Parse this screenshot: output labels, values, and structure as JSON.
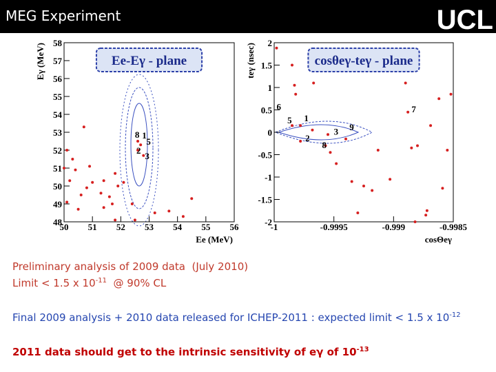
{
  "header": {
    "title": "MEG Experiment",
    "logo": "UCL"
  },
  "chart_data": [
    {
      "type": "scatter",
      "title": "Ee-Eγ - plane",
      "xlabel": "Ee (MeV)",
      "ylabel": "Eγ (MeV)",
      "color": "#d62020",
      "xlim": [
        50,
        56
      ],
      "xticks": [
        50,
        51,
        52,
        53,
        54,
        55,
        56
      ],
      "ylim": [
        48,
        58
      ],
      "yticks": [
        48,
        49,
        50,
        51,
        52,
        53,
        54,
        55,
        56,
        57,
        58
      ],
      "x": [
        50.1,
        50.3,
        50.0,
        50.4,
        50.2,
        50.6,
        50.1,
        50.5,
        50.9,
        51.0,
        50.8,
        51.3,
        51.4,
        51.6,
        51.7,
        51.8,
        51.9,
        51.4,
        52.1,
        52.4,
        52.5,
        53.2,
        53.7,
        54.2,
        54.5,
        51.8,
        50.7,
        52.6,
        52.7,
        52.6,
        52.8
      ],
      "y": [
        52.0,
        51.5,
        51.0,
        50.9,
        50.3,
        49.5,
        49.1,
        48.7,
        51.1,
        50.2,
        49.9,
        49.6,
        48.8,
        49.4,
        49.0,
        50.7,
        50.0,
        50.3,
        50.2,
        49.0,
        48.1,
        48.5,
        48.6,
        48.3,
        49.3,
        48.1,
        53.3,
        52.5,
        52.3,
        52.0,
        51.7
      ],
      "annotations": [
        {
          "text": "8",
          "x": 52.5,
          "y": 52.7
        },
        {
          "text": "1",
          "x": 52.75,
          "y": 52.65
        },
        {
          "text": "5",
          "x": 52.9,
          "y": 52.3
        },
        {
          "text": "2",
          "x": 52.55,
          "y": 51.8
        },
        {
          "text": "3",
          "x": 52.85,
          "y": 51.5
        }
      ]
    },
    {
      "type": "scatter",
      "title": "cosθeγ-teγ - plane",
      "xlabel": "cosΘeγ",
      "ylabel": "teγ (nsec)",
      "color": "#d62020",
      "xlim": [
        -1,
        -0.9985
      ],
      "xticks": [
        -1,
        -0.9995,
        -0.999,
        -0.9985
      ],
      "ylim": [
        -2,
        2
      ],
      "yticks": [
        -2,
        -1.5,
        -1,
        -0.5,
        0,
        0.5,
        1,
        1.5,
        2
      ],
      "x": [
        -0.99998,
        -0.99985,
        -0.99983,
        -0.99982,
        -0.99967,
        -0.99978,
        -0.99968,
        -0.99955,
        -0.99957,
        -0.99953,
        -0.99948,
        -0.9994,
        -0.99935,
        -0.9993,
        -0.99925,
        -0.99918,
        -0.99913,
        -0.99903,
        -0.9989,
        -0.99888,
        -0.99885,
        -0.9988,
        -0.99873,
        -0.99872,
        -0.99869,
        -0.99859,
        -0.99855,
        -0.99852,
        -0.99862,
        -0.99882,
        -0.99985,
        -0.99978
      ],
      "y": [
        1.88,
        1.5,
        1.05,
        0.85,
        1.1,
        0.15,
        0.05,
        -0.05,
        -0.3,
        -0.45,
        -0.7,
        -0.15,
        -1.1,
        -1.8,
        -1.2,
        -1.3,
        -0.4,
        -1.05,
        1.1,
        0.45,
        -0.35,
        -0.3,
        -1.85,
        -1.75,
        0.15,
        -1.25,
        -0.4,
        0.85,
        0.75,
        -2.0,
        0.15,
        -0.2
      ],
      "annotations": [
        {
          "text": "6",
          "x": -0.99998,
          "y": 0.5
        },
        {
          "text": "5",
          "x": -0.99989,
          "y": 0.2
        },
        {
          "text": "1",
          "x": -0.99975,
          "y": 0.25
        },
        {
          "text": "3",
          "x": -0.9995,
          "y": -0.05
        },
        {
          "text": "9",
          "x": -0.99937,
          "y": 0.05
        },
        {
          "text": "2",
          "x": -0.99974,
          "y": -0.2
        },
        {
          "text": "8",
          "x": -0.9996,
          "y": -0.35
        },
        {
          "text": "7",
          "x": -0.99885,
          "y": 0.45
        }
      ]
    }
  ],
  "body": [
    [
      "Preliminary analysis of 2009 data  (July 2010)"
    ],
    [
      "Limit < 1.5 x 10",
      "-11",
      "  @ 90% CL"
    ],
    [
      "Final 2009 analysis + 2010 data released for ICHEP-2011 : expected limit < 1.5 x 10",
      "-12"
    ],
    [
      "2011 data should get to the intrinsic sensitivity of eγ of 10",
      "-13"
    ]
  ]
}
